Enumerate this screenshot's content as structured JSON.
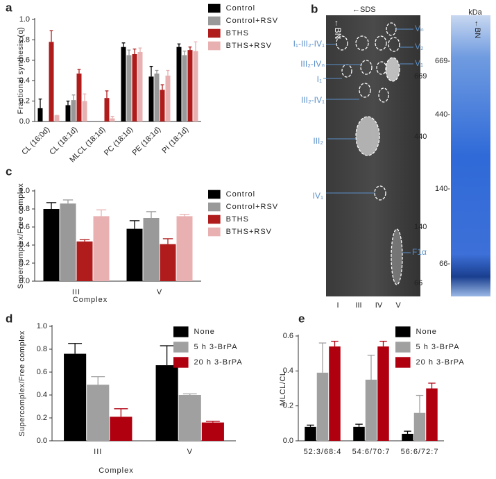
{
  "chart_data": [
    {
      "type": "bar",
      "panel": "a",
      "ylabel": "Fractional synthesis (q)",
      "categories": [
        "CL (16:0d)",
        "CL (18:1d)",
        "MLCL (18:1d)",
        "PC (18:1d)",
        "PE (18:1d)",
        "PI (18:1d)"
      ],
      "series": [
        {
          "name": "Control",
          "color": "#000000",
          "values": [
            0.13,
            0.16,
            null,
            0.73,
            0.44,
            0.73
          ],
          "errors": [
            0.09,
            0.04,
            null,
            0.04,
            0.1,
            0.03
          ]
        },
        {
          "name": "Control+RSV",
          "color": "#999999",
          "values": [
            null,
            0.21,
            null,
            0.65,
            0.47,
            0.65
          ],
          "errors": [
            null,
            0.05,
            null,
            0.05,
            0.03,
            0.04
          ]
        },
        {
          "name": "BTHS",
          "color": "#b01c1c",
          "values": [
            0.78,
            0.47,
            0.23,
            0.66,
            0.31,
            0.7
          ],
          "errors": [
            0.11,
            0.04,
            0.07,
            0.05,
            0.05,
            0.03
          ]
        },
        {
          "name": "BTHS+RSV",
          "color": "#e8b0b0",
          "values": [
            0.06,
            0.2,
            0.03,
            0.68,
            0.45,
            0.69
          ],
          "errors": [
            0,
            0.07,
            0.02,
            0.04,
            0.05,
            0.09
          ]
        }
      ],
      "ylim": [
        0,
        1
      ],
      "yticks": [
        {
          "value": 0,
          "label": "0.0"
        },
        0.2,
        0.4,
        0.6,
        0.8,
        {
          "value": 1,
          "label": "1.0"
        }
      ]
    },
    {
      "type": "bar",
      "panel": "c",
      "ylabel": "Supercomplex/Free complex",
      "xlabel": "Complex",
      "categories": [
        "III",
        "V"
      ],
      "series": [
        {
          "name": "Control",
          "color": "#000000",
          "values": [
            0.8,
            0.58
          ],
          "errors": [
            0.07,
            0.09
          ]
        },
        {
          "name": "Control+RSV",
          "color": "#999999",
          "values": [
            0.86,
            0.7
          ],
          "errors": [
            0.04,
            0.07
          ]
        },
        {
          "name": "BTHS",
          "color": "#b01c1c",
          "values": [
            0.44,
            0.41
          ],
          "errors": [
            0.02,
            0.06
          ]
        },
        {
          "name": "BTHS+RSV",
          "color": "#e8b0b0",
          "values": [
            0.72,
            0.72
          ],
          "errors": [
            0.07,
            0.02
          ]
        }
      ],
      "ylim": [
        0,
        1
      ],
      "yticks": [
        {
          "value": 0,
          "label": "0.0"
        },
        0.2,
        0.4,
        0.6,
        0.8,
        {
          "value": 1,
          "label": "1.0"
        }
      ]
    },
    {
      "type": "bar",
      "panel": "d",
      "ylabel": "Supercomplex/Free complex",
      "xlabel": "Complex",
      "categories": [
        "III",
        "V"
      ],
      "series": [
        {
          "name": "None",
          "color": "#000000",
          "values": [
            0.76,
            0.66
          ],
          "errors": [
            0.09,
            0.17
          ]
        },
        {
          "name": "5 h 3-BrPA",
          "color": "#a0a0a0",
          "values": [
            0.49,
            0.4
          ],
          "errors": [
            0.07,
            0.01
          ]
        },
        {
          "name": "20 h 3-BrPA",
          "color": "#b00010",
          "values": [
            0.21,
            0.16
          ],
          "errors": [
            0.07,
            0.01
          ]
        }
      ],
      "ylim": [
        0,
        1
      ],
      "yticks": [
        {
          "value": 0,
          "label": "0.0"
        },
        0.2,
        0.4,
        0.6,
        0.8,
        {
          "value": 1,
          "label": "1.0"
        }
      ]
    },
    {
      "type": "bar",
      "panel": "e",
      "ylabel": "MLCL/CL",
      "categories": [
        "52:3/68:4",
        "54:6/70:7",
        "56:6/72:7"
      ],
      "series": [
        {
          "name": "None",
          "color": "#000000",
          "values": [
            0.08,
            0.08,
            0.04
          ],
          "errors": [
            0.01,
            0.015,
            0.015
          ]
        },
        {
          "name": "5 h 3-BrPA",
          "color": "#a0a0a0",
          "values": [
            0.39,
            0.35,
            0.16
          ],
          "errors": [
            0.17,
            0.14,
            0.1
          ]
        },
        {
          "name": "20 h 3-BrPA",
          "color": "#b00010",
          "values": [
            0.54,
            0.54,
            0.3
          ],
          "errors": [
            0.03,
            0.03,
            0.03
          ]
        }
      ],
      "ylim": [
        0,
        0.6
      ],
      "yticks": [
        {
          "value": 0,
          "label": "0.0"
        },
        0.2,
        0.4,
        0.6
      ]
    }
  ],
  "gel": {
    "panel": "b",
    "sds": "←SDS",
    "bn": "←BN",
    "kda": "kDa",
    "spots": [
      "Vₙ",
      "V₂",
      "V₁",
      "I₁-III₂-IV₁",
      "III₂-IVₙ",
      "I₁",
      "III₂-IV₁",
      "III₂",
      "IV₁",
      "F1α"
    ],
    "gel_markers": [
      "669",
      "440",
      "140",
      "66"
    ],
    "ladder_markers": [
      "669-",
      "440-",
      "140-",
      "66-"
    ],
    "lanes": [
      "I",
      "III",
      "IV",
      "V"
    ]
  }
}
